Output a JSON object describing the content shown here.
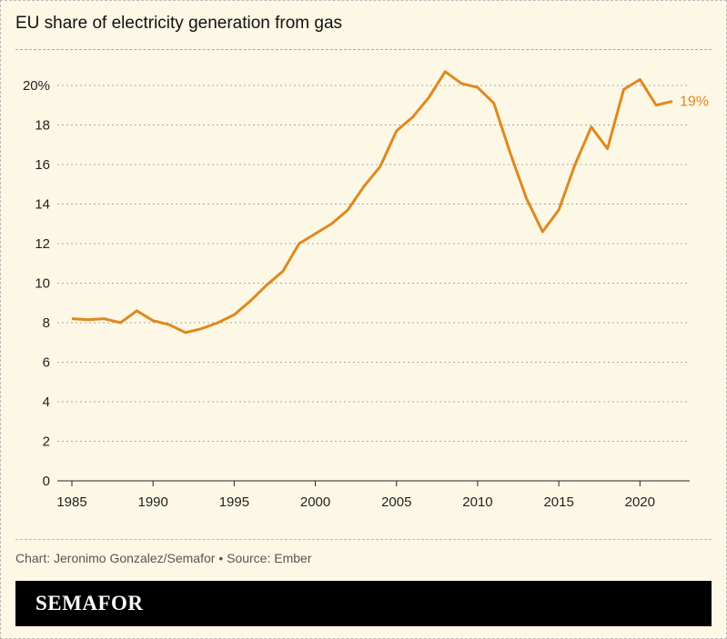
{
  "chart_data": {
    "type": "line",
    "title": "EU share of electricity generation from gas",
    "xlabel": "",
    "ylabel": "",
    "x": [
      1985,
      1986,
      1987,
      1988,
      1989,
      1990,
      1991,
      1992,
      1993,
      1994,
      1995,
      1996,
      1997,
      1998,
      1999,
      2000,
      2001,
      2002,
      2003,
      2004,
      2005,
      2006,
      2007,
      2008,
      2009,
      2010,
      2011,
      2012,
      2013,
      2014,
      2015,
      2016,
      2017,
      2018,
      2019,
      2020,
      2021,
      2022
    ],
    "series": [
      {
        "values": [
          8.2,
          8.15,
          8.2,
          8.0,
          8.6,
          8.1,
          7.9,
          7.5,
          7.7,
          8.0,
          8.4,
          9.1,
          9.9,
          10.6,
          12.0,
          12.5,
          13.0,
          13.7,
          14.9,
          15.9,
          17.7,
          18.4,
          19.4,
          20.7,
          20.1,
          19.9,
          19.1,
          16.6,
          14.3,
          12.6,
          13.7,
          16.0,
          17.9,
          16.8,
          19.8,
          20.3,
          19.0,
          19.2
        ],
        "color": "#e0881f"
      }
    ],
    "end_label": "19%",
    "xlim": [
      1985,
      2022
    ],
    "ylim": [
      0,
      20
    ],
    "x_ticks": [
      "1985",
      "1990",
      "1995",
      "2000",
      "2005",
      "2010",
      "2015",
      "2020"
    ],
    "y_ticks": [
      "0",
      "2",
      "4",
      "6",
      "8",
      "10",
      "12",
      "14",
      "16",
      "18",
      "20%"
    ],
    "grid": "horizontal dashed"
  },
  "footer": {
    "credit": "Chart: Jeronimo Gonzalez/Semafor • Source: Ember",
    "brand": "SEMAFOR"
  }
}
